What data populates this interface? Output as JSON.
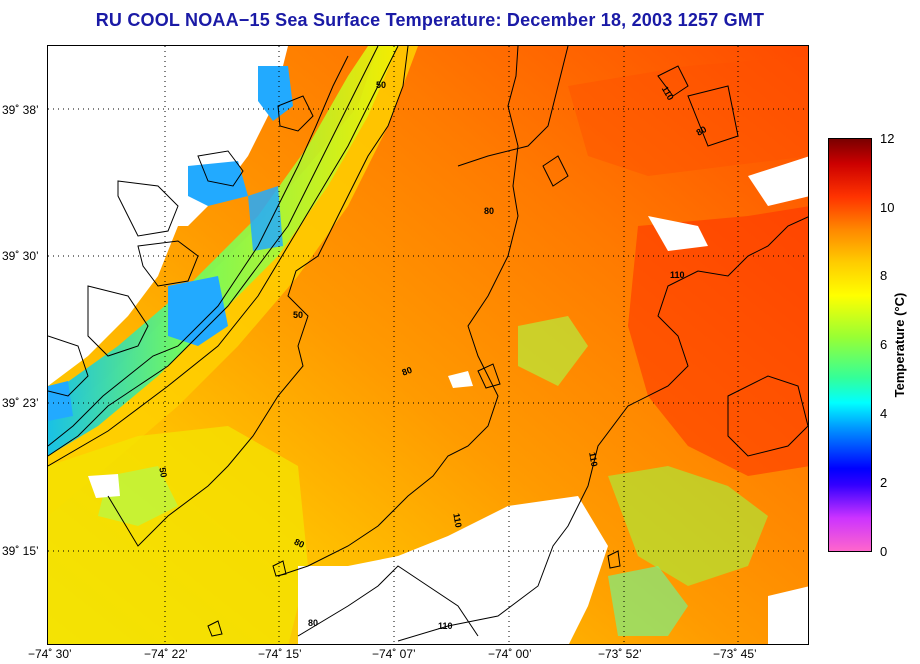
{
  "title": "RU COOL  NOAA−15  Sea Surface Temperature:  December 18, 2003 1257 GMT",
  "map": {
    "y_labels": [
      "39˚ 38’",
      "39˚ 30’",
      "39˚ 23’",
      "39˚ 15’"
    ],
    "x_labels": [
      "−74˚ 30’",
      "−74˚ 22’",
      "−74˚ 15’",
      "−74˚ 07’",
      "−74˚ 00’",
      "−73˚ 52’",
      "−73˚ 45’"
    ],
    "contour_labels": [
      "50",
      "50",
      "50",
      "80",
      "80",
      "80",
      "80",
      "110",
      "110",
      "110",
      "110",
      "110",
      "80"
    ],
    "colors": {
      "land_outline": "#000000",
      "no_data": "#ffffff",
      "coast_water": "#22aaff"
    }
  },
  "colorbar": {
    "label": "Temperature (°C)",
    "ticks": [
      "12",
      "10",
      "8",
      "6",
      "4",
      "2",
      "0"
    ],
    "range": [
      0,
      12
    ]
  }
}
